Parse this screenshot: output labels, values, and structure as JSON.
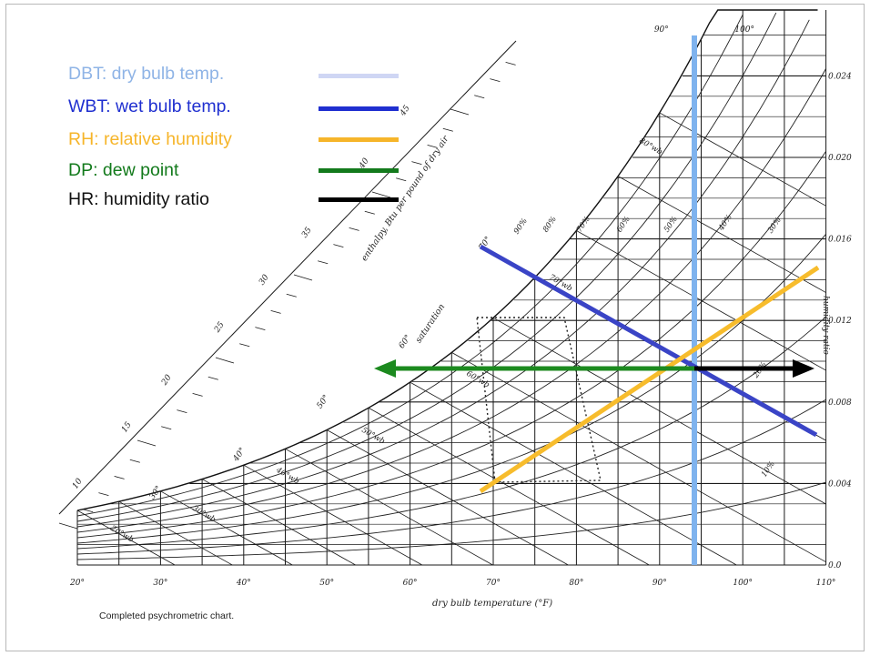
{
  "legend": [
    {
      "prefix": "DBT:",
      "rest": " dry bulb temp.",
      "prefix_color": "#8fb4e6",
      "rest_color": "#8fb4e6",
      "swatch": "#cfd6f4"
    },
    {
      "prefix": "WBT:",
      "rest": " wet bulb temp.",
      "prefix_color": "#1f2fd0",
      "rest_color": "#1f2fd0",
      "swatch": "#1f2fd0"
    },
    {
      "prefix": "RH:",
      "rest": " relative humidity",
      "prefix_color": "#f6b52a",
      "rest_color": "#f6b52a",
      "swatch": "#f6b52a"
    },
    {
      "prefix": "DP:",
      "rest": " dew point",
      "prefix_color": "#137a1c",
      "rest_color": "#137a1c",
      "swatch": "#137a1c"
    },
    {
      "prefix": "HR:",
      "rest": " humidity ratio",
      "prefix_color": "#111111",
      "rest_color": "#111111",
      "swatch": "#000000"
    }
  ],
  "chart": {
    "x_axis_title": "dry bulb temperature (°F)",
    "x_ticks": [
      "20°",
      "30°",
      "40°",
      "50°",
      "60°",
      "70°",
      "80°",
      "90°",
      "100°",
      "110°"
    ],
    "top_ticks": [
      "90°",
      "100°"
    ],
    "y_axis_title": "humidity ratio",
    "y_ticks": [
      "0.024",
      "0.020",
      "0.016",
      "0.012",
      "0.008",
      "0.004",
      "0.0"
    ],
    "enthalpy_title": "enthalpy, Btu per pound of dry air",
    "enthalpy_ticks": [
      "10",
      "15",
      "20",
      "25",
      "30",
      "35",
      "40",
      "45"
    ],
    "saturation_label": "saturation",
    "saturation_ticks": [
      "30°",
      "40°",
      "50°",
      "60°",
      "70°"
    ],
    "rh_labels": [
      "90%",
      "80%",
      "70%",
      "60%",
      "50%",
      "40%",
      "30%",
      "20%",
      "10%"
    ],
    "wb_labels": [
      "20°wb",
      "30°wb",
      "40°wb",
      "50°wb",
      "60°wb",
      "70°wb",
      "80°wb"
    ],
    "caption": "Completed psychrometric chart.",
    "colors": {
      "dbt": "#7fb3ee",
      "wbt": "#3a44c6",
      "rh": "#f7bc2c",
      "dp": "#1c8a1f",
      "hr": "#000000"
    }
  }
}
